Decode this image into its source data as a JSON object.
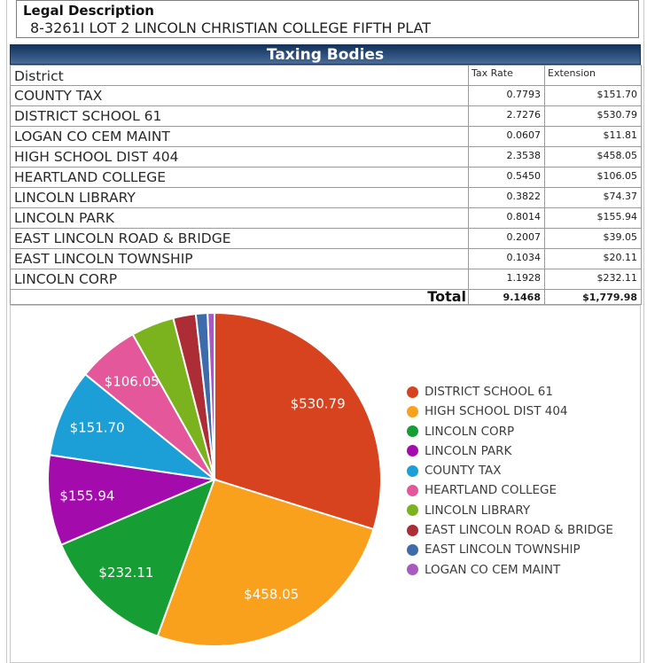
{
  "legal": {
    "title": "Legal Description",
    "value": "8-3261I LOT 2 LINCOLN CHRISTIAN COLLEGE FIFTH PLAT"
  },
  "table": {
    "title": "Taxing Bodies",
    "columns": [
      "District",
      "Tax Rate",
      "Extension"
    ],
    "rows": [
      {
        "district": "COUNTY TAX",
        "tax_rate": "0.7793",
        "extension": "$151.70"
      },
      {
        "district": "DISTRICT SCHOOL 61",
        "tax_rate": "2.7276",
        "extension": "$530.79"
      },
      {
        "district": "LOGAN CO CEM MAINT",
        "tax_rate": "0.0607",
        "extension": "$11.81"
      },
      {
        "district": "HIGH SCHOOL DIST 404",
        "tax_rate": "2.3538",
        "extension": "$458.05"
      },
      {
        "district": "HEARTLAND COLLEGE",
        "tax_rate": "0.5450",
        "extension": "$106.05"
      },
      {
        "district": "LINCOLN LIBRARY",
        "tax_rate": "0.3822",
        "extension": "$74.37"
      },
      {
        "district": "LINCOLN PARK",
        "tax_rate": "0.8014",
        "extension": "$155.94"
      },
      {
        "district": "EAST LINCOLN ROAD & BRIDGE",
        "tax_rate": "0.2007",
        "extension": "$39.05"
      },
      {
        "district": "EAST LINCOLN TOWNSHIP",
        "tax_rate": "0.1034",
        "extension": "$20.11"
      },
      {
        "district": "LINCOLN CORP",
        "tax_rate": "1.1928",
        "extension": "$232.11"
      }
    ],
    "total": {
      "label": "Total",
      "tax_rate": "9.1468",
      "extension": "$1,779.98"
    }
  },
  "chart_data": {
    "type": "pie",
    "start_angle_deg": 0,
    "direction": "clockwise",
    "legend_position": "right",
    "label_color": "#ffffff",
    "slices": [
      {
        "name": "DISTRICT SCHOOL 61",
        "value": 530.79,
        "label": "$530.79",
        "color": "#d8431f"
      },
      {
        "name": "HIGH SCHOOL DIST 404",
        "value": 458.05,
        "label": "$458.05",
        "color": "#f9a11d"
      },
      {
        "name": "LINCOLN CORP",
        "value": 232.11,
        "label": "$232.11",
        "color": "#169e35"
      },
      {
        "name": "LINCOLN PARK",
        "value": 155.94,
        "label": "$155.94",
        "color": "#a40bad"
      },
      {
        "name": "COUNTY TAX",
        "value": 151.7,
        "label": "$151.70",
        "color": "#1b9fd6"
      },
      {
        "name": "HEARTLAND COLLEGE",
        "value": 106.05,
        "label": "$106.05",
        "color": "#e5579b"
      },
      {
        "name": "LINCOLN LIBRARY",
        "value": 74.37,
        "label": "",
        "color": "#7ab31d"
      },
      {
        "name": "EAST LINCOLN ROAD & BRIDGE",
        "value": 39.05,
        "label": "",
        "color": "#ad2d36"
      },
      {
        "name": "EAST LINCOLN TOWNSHIP",
        "value": 20.11,
        "label": "",
        "color": "#3e6cab"
      },
      {
        "name": "LOGAN CO CEM MAINT",
        "value": 11.81,
        "label": "",
        "color": "#a85abe"
      }
    ]
  },
  "colors": {
    "header_gradient_top": "#16345a",
    "header_gradient_bottom": "#4d6c95",
    "header_text": "#ffffff",
    "legend_text": "#3c3c3c"
  }
}
